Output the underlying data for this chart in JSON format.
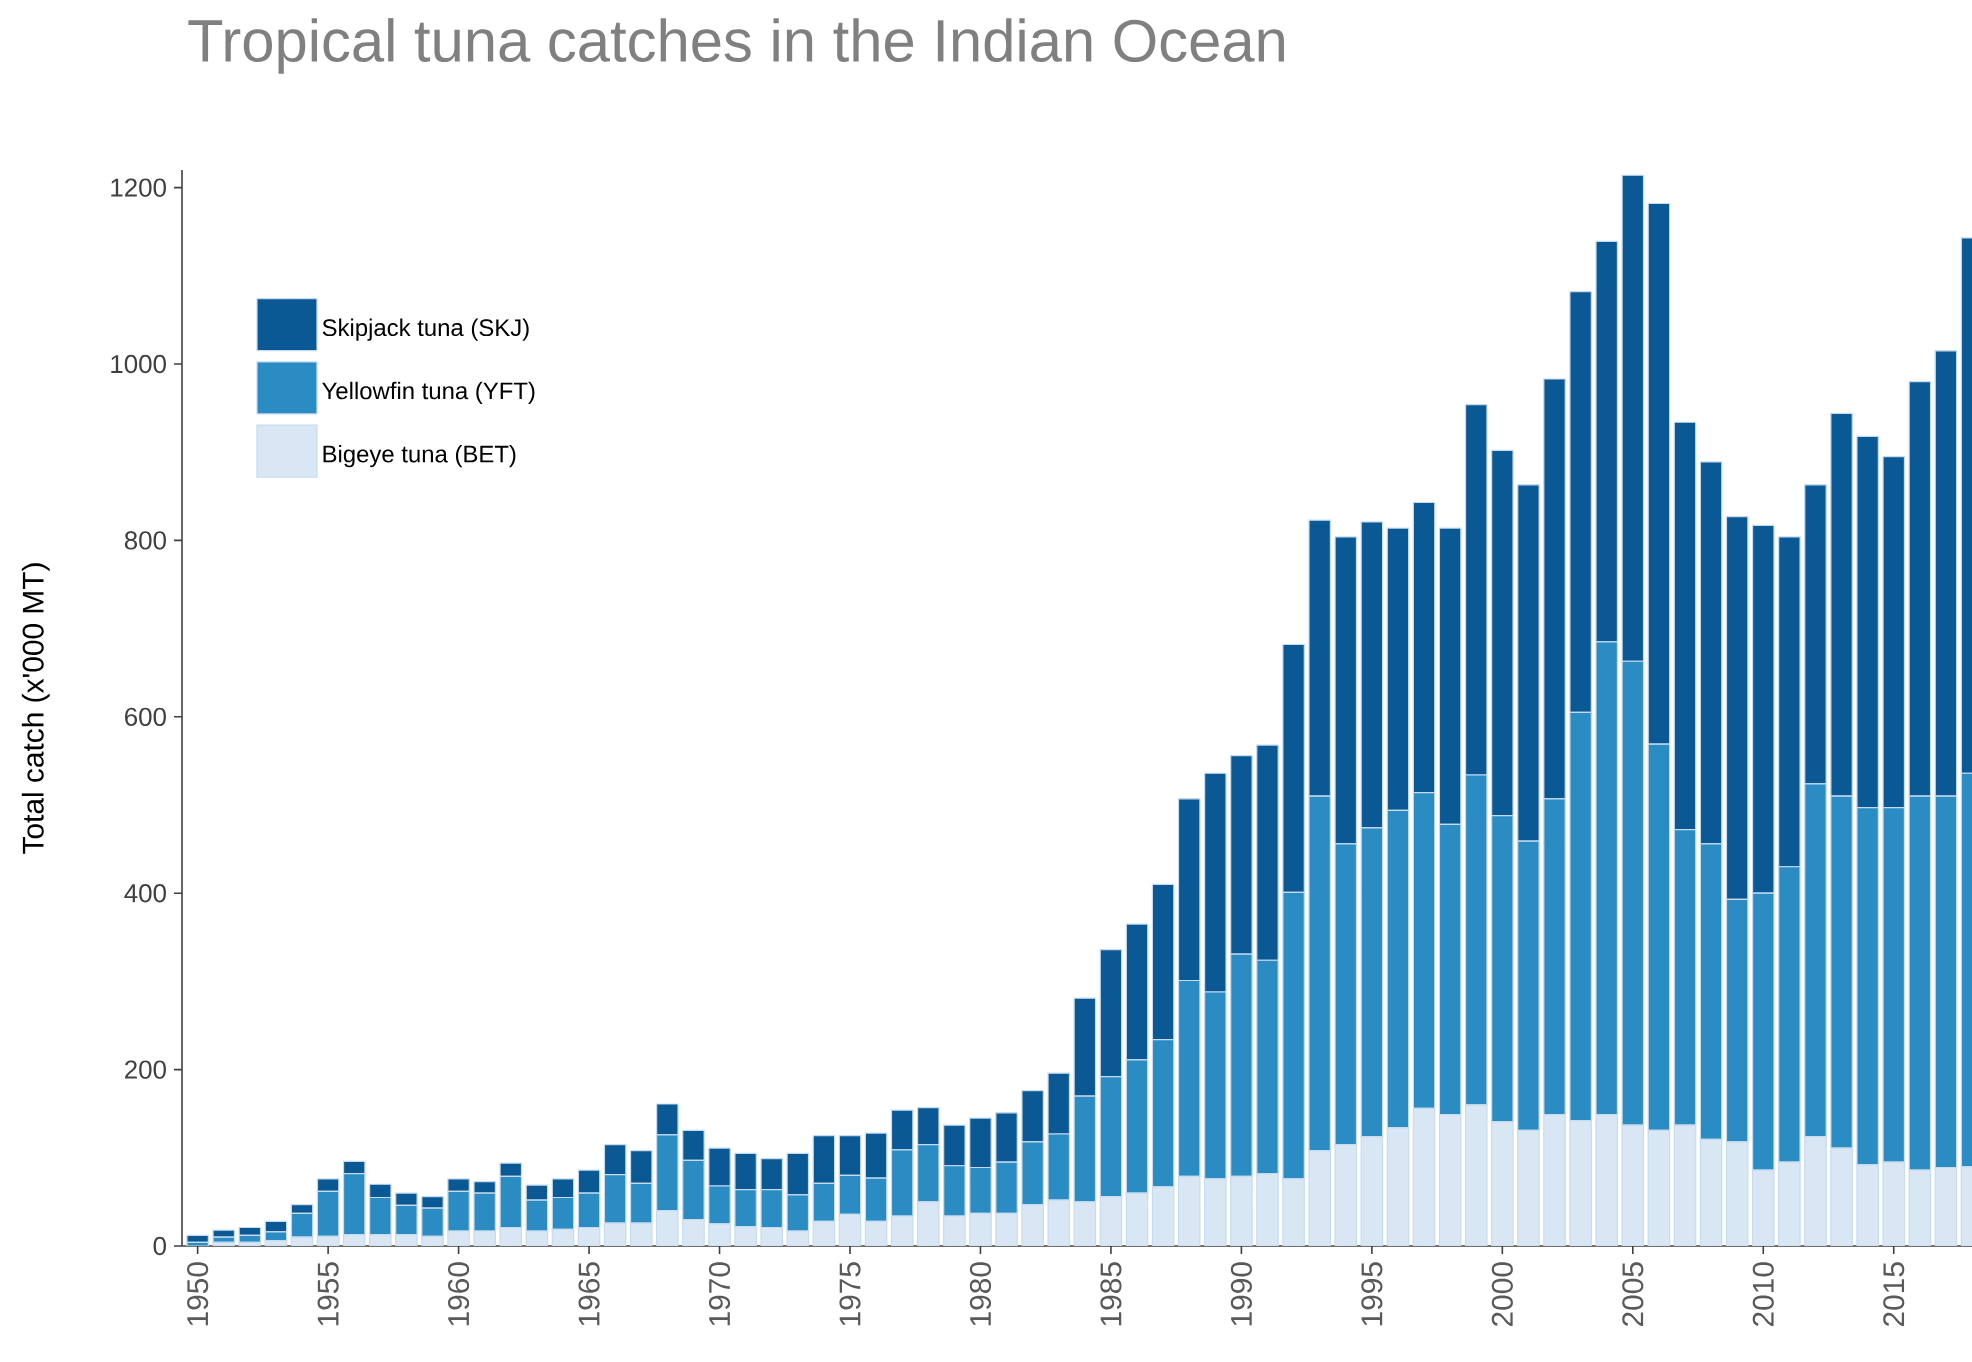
{
  "chart_data": {
    "type": "bar",
    "stacked": true,
    "title": "Tropical tuna catches in the Indian Ocean",
    "ylabel": "Total catch (x'000 MT)",
    "x": [
      1950,
      1951,
      1952,
      1953,
      1954,
      1955,
      1956,
      1957,
      1958,
      1959,
      1960,
      1961,
      1962,
      1963,
      1964,
      1965,
      1966,
      1967,
      1968,
      1969,
      1970,
      1971,
      1972,
      1973,
      1974,
      1975,
      1976,
      1977,
      1978,
      1979,
      1980,
      1981,
      1982,
      1983,
      1984,
      1985,
      1986,
      1987,
      1988,
      1989,
      1990,
      1991,
      1992,
      1993,
      1994,
      1995,
      1996,
      1997,
      1998,
      1999,
      2000,
      2001,
      2002,
      2003,
      2004,
      2005,
      2006,
      2007,
      2008,
      2009,
      2010,
      2011,
      2012,
      2013,
      2014,
      2015,
      2016,
      2017,
      2018
    ],
    "series": [
      {
        "name": "Bigeye tuna (BET)",
        "color": "#d9e7f5",
        "values": [
          null,
          4,
          4,
          6,
          10,
          11,
          13,
          13,
          13,
          11,
          17,
          17,
          21,
          17,
          19,
          21,
          26,
          26,
          40,
          30,
          25,
          22,
          21,
          17,
          28,
          36,
          28,
          34,
          50,
          34,
          37,
          37,
          47,
          52,
          50,
          56,
          60,
          67,
          79,
          76,
          79,
          82,
          76,
          108,
          115,
          124,
          134,
          156,
          149,
          160,
          141,
          131,
          149,
          142,
          149,
          137,
          131,
          137,
          121,
          118,
          86,
          95,
          124,
          111,
          92,
          95,
          86,
          89,
          90
        ]
      },
      {
        "name": "Yellowfin tuna (YFT)",
        "color": "#2b8cc4",
        "values": [
          4,
          6,
          8,
          10,
          27,
          51,
          69,
          42,
          33,
          32,
          45,
          43,
          58,
          35,
          36,
          39,
          55,
          45,
          86,
          67,
          43,
          42,
          43,
          41,
          43,
          44,
          49,
          75,
          65,
          57,
          52,
          58,
          71,
          75,
          120,
          136,
          151,
          167,
          222,
          212,
          252,
          242,
          325,
          402,
          341,
          350,
          360,
          358,
          329,
          374,
          347,
          328,
          358,
          463,
          536,
          526,
          438,
          335,
          335,
          275,
          314,
          335,
          400,
          399,
          405,
          402,
          424,
          421,
          446
        ]
      },
      {
        "name": "Skipjack tuna (SKJ)",
        "color": "#0a5894",
        "values": [
          8,
          8,
          9,
          12,
          10,
          14,
          14,
          15,
          14,
          13,
          14,
          13,
          15,
          17,
          21,
          26,
          34,
          37,
          35,
          34,
          43,
          41,
          35,
          47,
          54,
          45,
          51,
          45,
          42,
          46,
          56,
          56,
          58,
          69,
          111,
          144,
          154,
          176,
          206,
          248,
          225,
          244,
          281,
          313,
          348,
          347,
          320,
          329,
          336,
          420,
          414,
          404,
          476,
          477,
          454,
          551,
          613,
          462,
          433,
          434,
          417,
          374,
          339,
          434,
          421,
          398,
          470,
          505,
          607
        ]
      }
    ],
    "xlim": [
      1949.4,
      2018
    ],
    "ylim": [
      0,
      1220
    ],
    "xticks": [
      1950,
      1955,
      1960,
      1965,
      1970,
      1975,
      1980,
      1985,
      1990,
      1995,
      2000,
      2005,
      2010,
      2015
    ],
    "yticks": [
      0,
      200,
      400,
      600,
      800,
      1000,
      1200
    ],
    "legend": "top left"
  }
}
